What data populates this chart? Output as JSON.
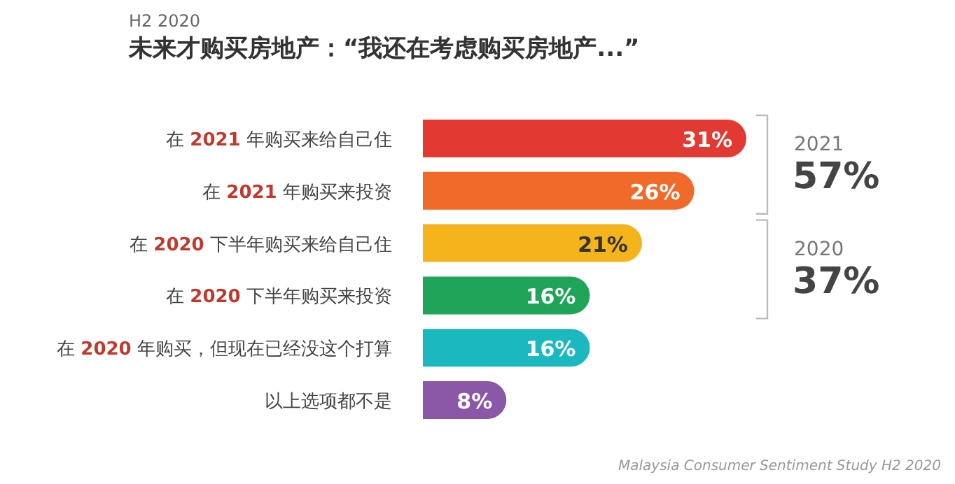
{
  "chart_data": {
    "type": "bar",
    "orientation": "horizontal",
    "subtitle": "H2 2020",
    "title": "未来才购买房地产：“我还在考虑购买房地产...”",
    "categories": [
      "在 2021 年购买来给自己住",
      "在 2021 年购买来投资",
      "在 2020 下半年购买来给自己住",
      "在 2020 下半年购买来投资",
      "在 2020 年购买，但现在已经没这个打算",
      "以上选项都不是"
    ],
    "values": [
      31,
      26,
      21,
      16,
      16,
      8
    ],
    "colors": [
      "#e23a33",
      "#f06a2a",
      "#f5b41c",
      "#1fa45a",
      "#1bb8c0",
      "#8a58a6"
    ],
    "value_labels": [
      "31%",
      "26%",
      "21%",
      "16%",
      "16%",
      "8%"
    ],
    "annotations": [
      "2021",
      "57%",
      "2020",
      "37%",
      "Malaysia Consumer Sentiment Study H2 2020"
    ]
  }
}
